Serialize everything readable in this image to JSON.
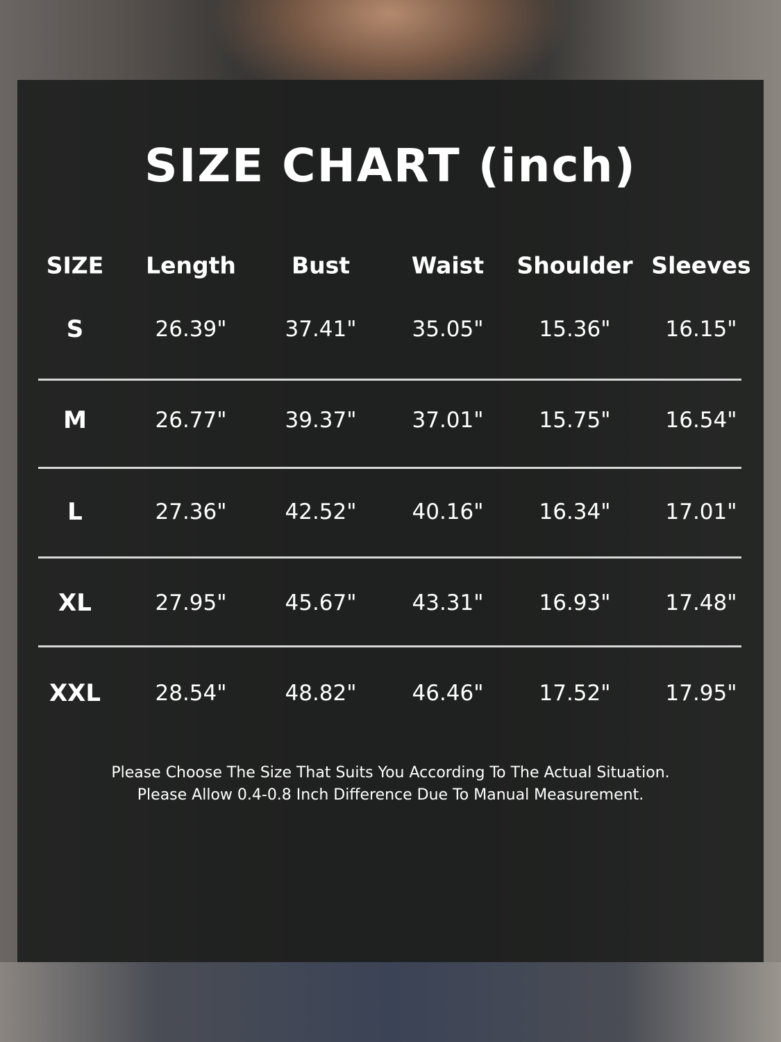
{
  "chart_data": {
    "type": "table",
    "title": "SIZE CHART (inch)",
    "columns": [
      "SIZE",
      "Length",
      "Bust",
      "Waist",
      "Shoulder",
      "Sleeves"
    ],
    "rows": [
      [
        "S",
        "26.39\"",
        "37.41\"",
        "35.05\"",
        "15.36\"",
        "16.15\""
      ],
      [
        "M",
        "26.77\"",
        "39.37\"",
        "37.01\"",
        "15.75\"",
        "16.54\""
      ],
      [
        "L",
        "27.36\"",
        "42.52\"",
        "40.16\"",
        "16.34\"",
        "17.01\""
      ],
      [
        "XL",
        "27.95\"",
        "45.67\"",
        "43.31\"",
        "16.93\"",
        "17.48\""
      ],
      [
        "XXL",
        "28.54\"",
        "48.82\"",
        "46.46\"",
        "17.52\"",
        "17.95\""
      ]
    ],
    "notes": [
      "Please Choose The Size That Suits You According To The Actual Situation.",
      "Please Allow 0.4-0.8 Inch Difference Due To Manual Measurement."
    ]
  }
}
